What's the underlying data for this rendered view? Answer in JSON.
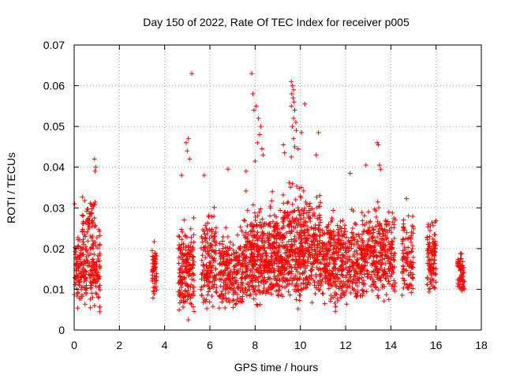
{
  "chart_data": {
    "type": "scatter",
    "title": "Day 150 of 2022, Rate Of TEC Index for receiver p005",
    "xlabel": "GPS time / hours",
    "ylabel": "ROTI / TECUs",
    "xlim": [
      0,
      18
    ],
    "ylim": [
      0,
      0.07
    ],
    "xticks": [
      "0",
      "2",
      "4",
      "6",
      "8",
      "10",
      "12",
      "14",
      "16",
      "18"
    ],
    "yticks": [
      "0",
      "0.01",
      "0.02",
      "0.03",
      "0.04",
      "0.05",
      "0.06",
      "0.07"
    ],
    "grid": true,
    "marker": "+",
    "color": "#ff0000",
    "series": [
      {
        "name": "ROTI p005",
        "clusters": [
          {
            "x": [
              0.0,
              1.15
            ],
            "y": [
              0.004,
              0.028
            ],
            "n": 160
          },
          {
            "x": [
              0.35,
              0.95
            ],
            "y": [
              0.02,
              0.036
            ],
            "n": 40
          },
          {
            "x": [
              3.45,
              3.65
            ],
            "y": [
              0.007,
              0.024
            ],
            "n": 40
          },
          {
            "x": [
              4.6,
              5.3
            ],
            "y": [
              0.002,
              0.03
            ],
            "n": 130
          },
          {
            "x": [
              5.6,
              6.3
            ],
            "y": [
              0.004,
              0.034
            ],
            "n": 110
          },
          {
            "x": [
              6.4,
              7.5
            ],
            "y": [
              0.003,
              0.028
            ],
            "n": 160
          },
          {
            "x": [
              7.5,
              9.2
            ],
            "y": [
              0.004,
              0.036
            ],
            "n": 340
          },
          {
            "x": [
              9.2,
              10.9
            ],
            "y": [
              0.004,
              0.04
            ],
            "n": 340
          },
          {
            "x": [
              10.9,
              12.8
            ],
            "y": [
              0.004,
              0.033
            ],
            "n": 320
          },
          {
            "x": [
              12.8,
              14.2
            ],
            "y": [
              0.005,
              0.036
            ],
            "n": 220
          },
          {
            "x": [
              14.5,
              15.0
            ],
            "y": [
              0.005,
              0.034
            ],
            "n": 70
          },
          {
            "x": [
              15.6,
              16.0
            ],
            "y": [
              0.006,
              0.032
            ],
            "n": 70
          },
          {
            "x": [
              16.95,
              17.25
            ],
            "y": [
              0.007,
              0.022
            ],
            "n": 45
          }
        ],
        "points": [
          {
            "x": 0.02,
            "y": 0.031
          },
          {
            "x": 0.9,
            "y": 0.042
          },
          {
            "x": 0.95,
            "y": 0.04
          },
          {
            "x": 0.92,
            "y": 0.039
          },
          {
            "x": 1.13,
            "y": 0.0045
          },
          {
            "x": 4.75,
            "y": 0.038
          },
          {
            "x": 4.95,
            "y": 0.046
          },
          {
            "x": 5.0,
            "y": 0.044
          },
          {
            "x": 5.05,
            "y": 0.047
          },
          {
            "x": 5.2,
            "y": 0.063
          },
          {
            "x": 5.1,
            "y": 0.042
          },
          {
            "x": 5.05,
            "y": 0.0025
          },
          {
            "x": 5.75,
            "y": 0.038
          },
          {
            "x": 6.8,
            "y": 0.0395
          },
          {
            "x": 7.6,
            "y": 0.039
          },
          {
            "x": 7.85,
            "y": 0.063
          },
          {
            "x": 7.9,
            "y": 0.058
          },
          {
            "x": 7.95,
            "y": 0.054
          },
          {
            "x": 8.05,
            "y": 0.055
          },
          {
            "x": 8.15,
            "y": 0.052
          },
          {
            "x": 8.2,
            "y": 0.048
          },
          {
            "x": 8.25,
            "y": 0.05
          },
          {
            "x": 8.3,
            "y": 0.0445
          },
          {
            "x": 8.1,
            "y": 0.046
          },
          {
            "x": 8.0,
            "y": 0.0415
          },
          {
            "x": 8.35,
            "y": 0.043
          },
          {
            "x": 9.6,
            "y": 0.061
          },
          {
            "x": 9.65,
            "y": 0.06
          },
          {
            "x": 9.7,
            "y": 0.059
          },
          {
            "x": 9.62,
            "y": 0.058
          },
          {
            "x": 9.68,
            "y": 0.057
          },
          {
            "x": 9.72,
            "y": 0.056
          },
          {
            "x": 9.6,
            "y": 0.055
          },
          {
            "x": 9.75,
            "y": 0.054
          },
          {
            "x": 9.7,
            "y": 0.052
          },
          {
            "x": 9.65,
            "y": 0.05
          },
          {
            "x": 9.8,
            "y": 0.051
          },
          {
            "x": 9.82,
            "y": 0.049
          },
          {
            "x": 9.7,
            "y": 0.047
          },
          {
            "x": 9.75,
            "y": 0.045
          },
          {
            "x": 9.9,
            "y": 0.0445
          },
          {
            "x": 9.25,
            "y": 0.0455
          },
          {
            "x": 9.3,
            "y": 0.0435
          },
          {
            "x": 9.6,
            "y": 0.0425
          },
          {
            "x": 10.2,
            "y": 0.0555
          },
          {
            "x": 10.05,
            "y": 0.0485
          },
          {
            "x": 10.8,
            "y": 0.0485
          },
          {
            "x": 10.7,
            "y": 0.043
          },
          {
            "x": 12.2,
            "y": 0.0385
          },
          {
            "x": 12.9,
            "y": 0.0405
          },
          {
            "x": 13.4,
            "y": 0.046
          },
          {
            "x": 13.45,
            "y": 0.0455
          },
          {
            "x": 13.5,
            "y": 0.0405
          },
          {
            "x": 13.55,
            "y": 0.0395
          }
        ]
      }
    ]
  }
}
